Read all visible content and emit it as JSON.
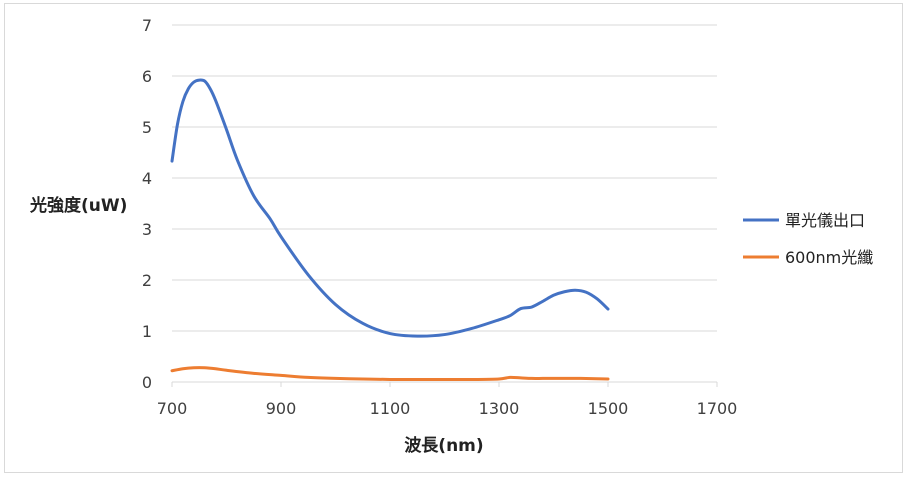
{
  "chart_data": {
    "type": "line",
    "title": "",
    "xlabel": "波長(nm)",
    "ylabel": "光強度(uW)",
    "xlim": [
      700,
      1700
    ],
    "ylim": [
      0,
      7
    ],
    "xticks": [
      700,
      900,
      1100,
      1300,
      1500,
      1700
    ],
    "yticks": [
      0,
      1,
      2,
      3,
      4,
      5,
      6,
      7
    ],
    "grid": "horizontal",
    "legend_position": "right",
    "series": [
      {
        "name": "單光儀出口",
        "color": "#4472c4",
        "x": [
          700,
          710,
          720,
          730,
          740,
          750,
          760,
          770,
          780,
          800,
          820,
          850,
          880,
          900,
          950,
          1000,
          1050,
          1100,
          1150,
          1200,
          1250,
          1300,
          1320,
          1340,
          1360,
          1380,
          1400,
          1420,
          1440,
          1460,
          1480,
          1500
        ],
        "y": [
          4.33,
          5.05,
          5.5,
          5.75,
          5.88,
          5.92,
          5.9,
          5.75,
          5.52,
          4.95,
          4.35,
          3.65,
          3.2,
          2.85,
          2.1,
          1.52,
          1.15,
          0.95,
          0.9,
          0.93,
          1.05,
          1.22,
          1.3,
          1.44,
          1.47,
          1.58,
          1.7,
          1.77,
          1.8,
          1.76,
          1.63,
          1.43
        ]
      },
      {
        "name": "600nm光纖",
        "color": "#ed7d31",
        "x": [
          700,
          720,
          740,
          760,
          780,
          800,
          850,
          900,
          950,
          1000,
          1050,
          1100,
          1150,
          1200,
          1250,
          1300,
          1320,
          1340,
          1360,
          1380,
          1400,
          1450,
          1500
        ],
        "y": [
          0.22,
          0.26,
          0.28,
          0.28,
          0.26,
          0.23,
          0.17,
          0.13,
          0.09,
          0.07,
          0.06,
          0.05,
          0.05,
          0.05,
          0.05,
          0.06,
          0.09,
          0.08,
          0.07,
          0.07,
          0.07,
          0.07,
          0.06
        ]
      }
    ]
  }
}
